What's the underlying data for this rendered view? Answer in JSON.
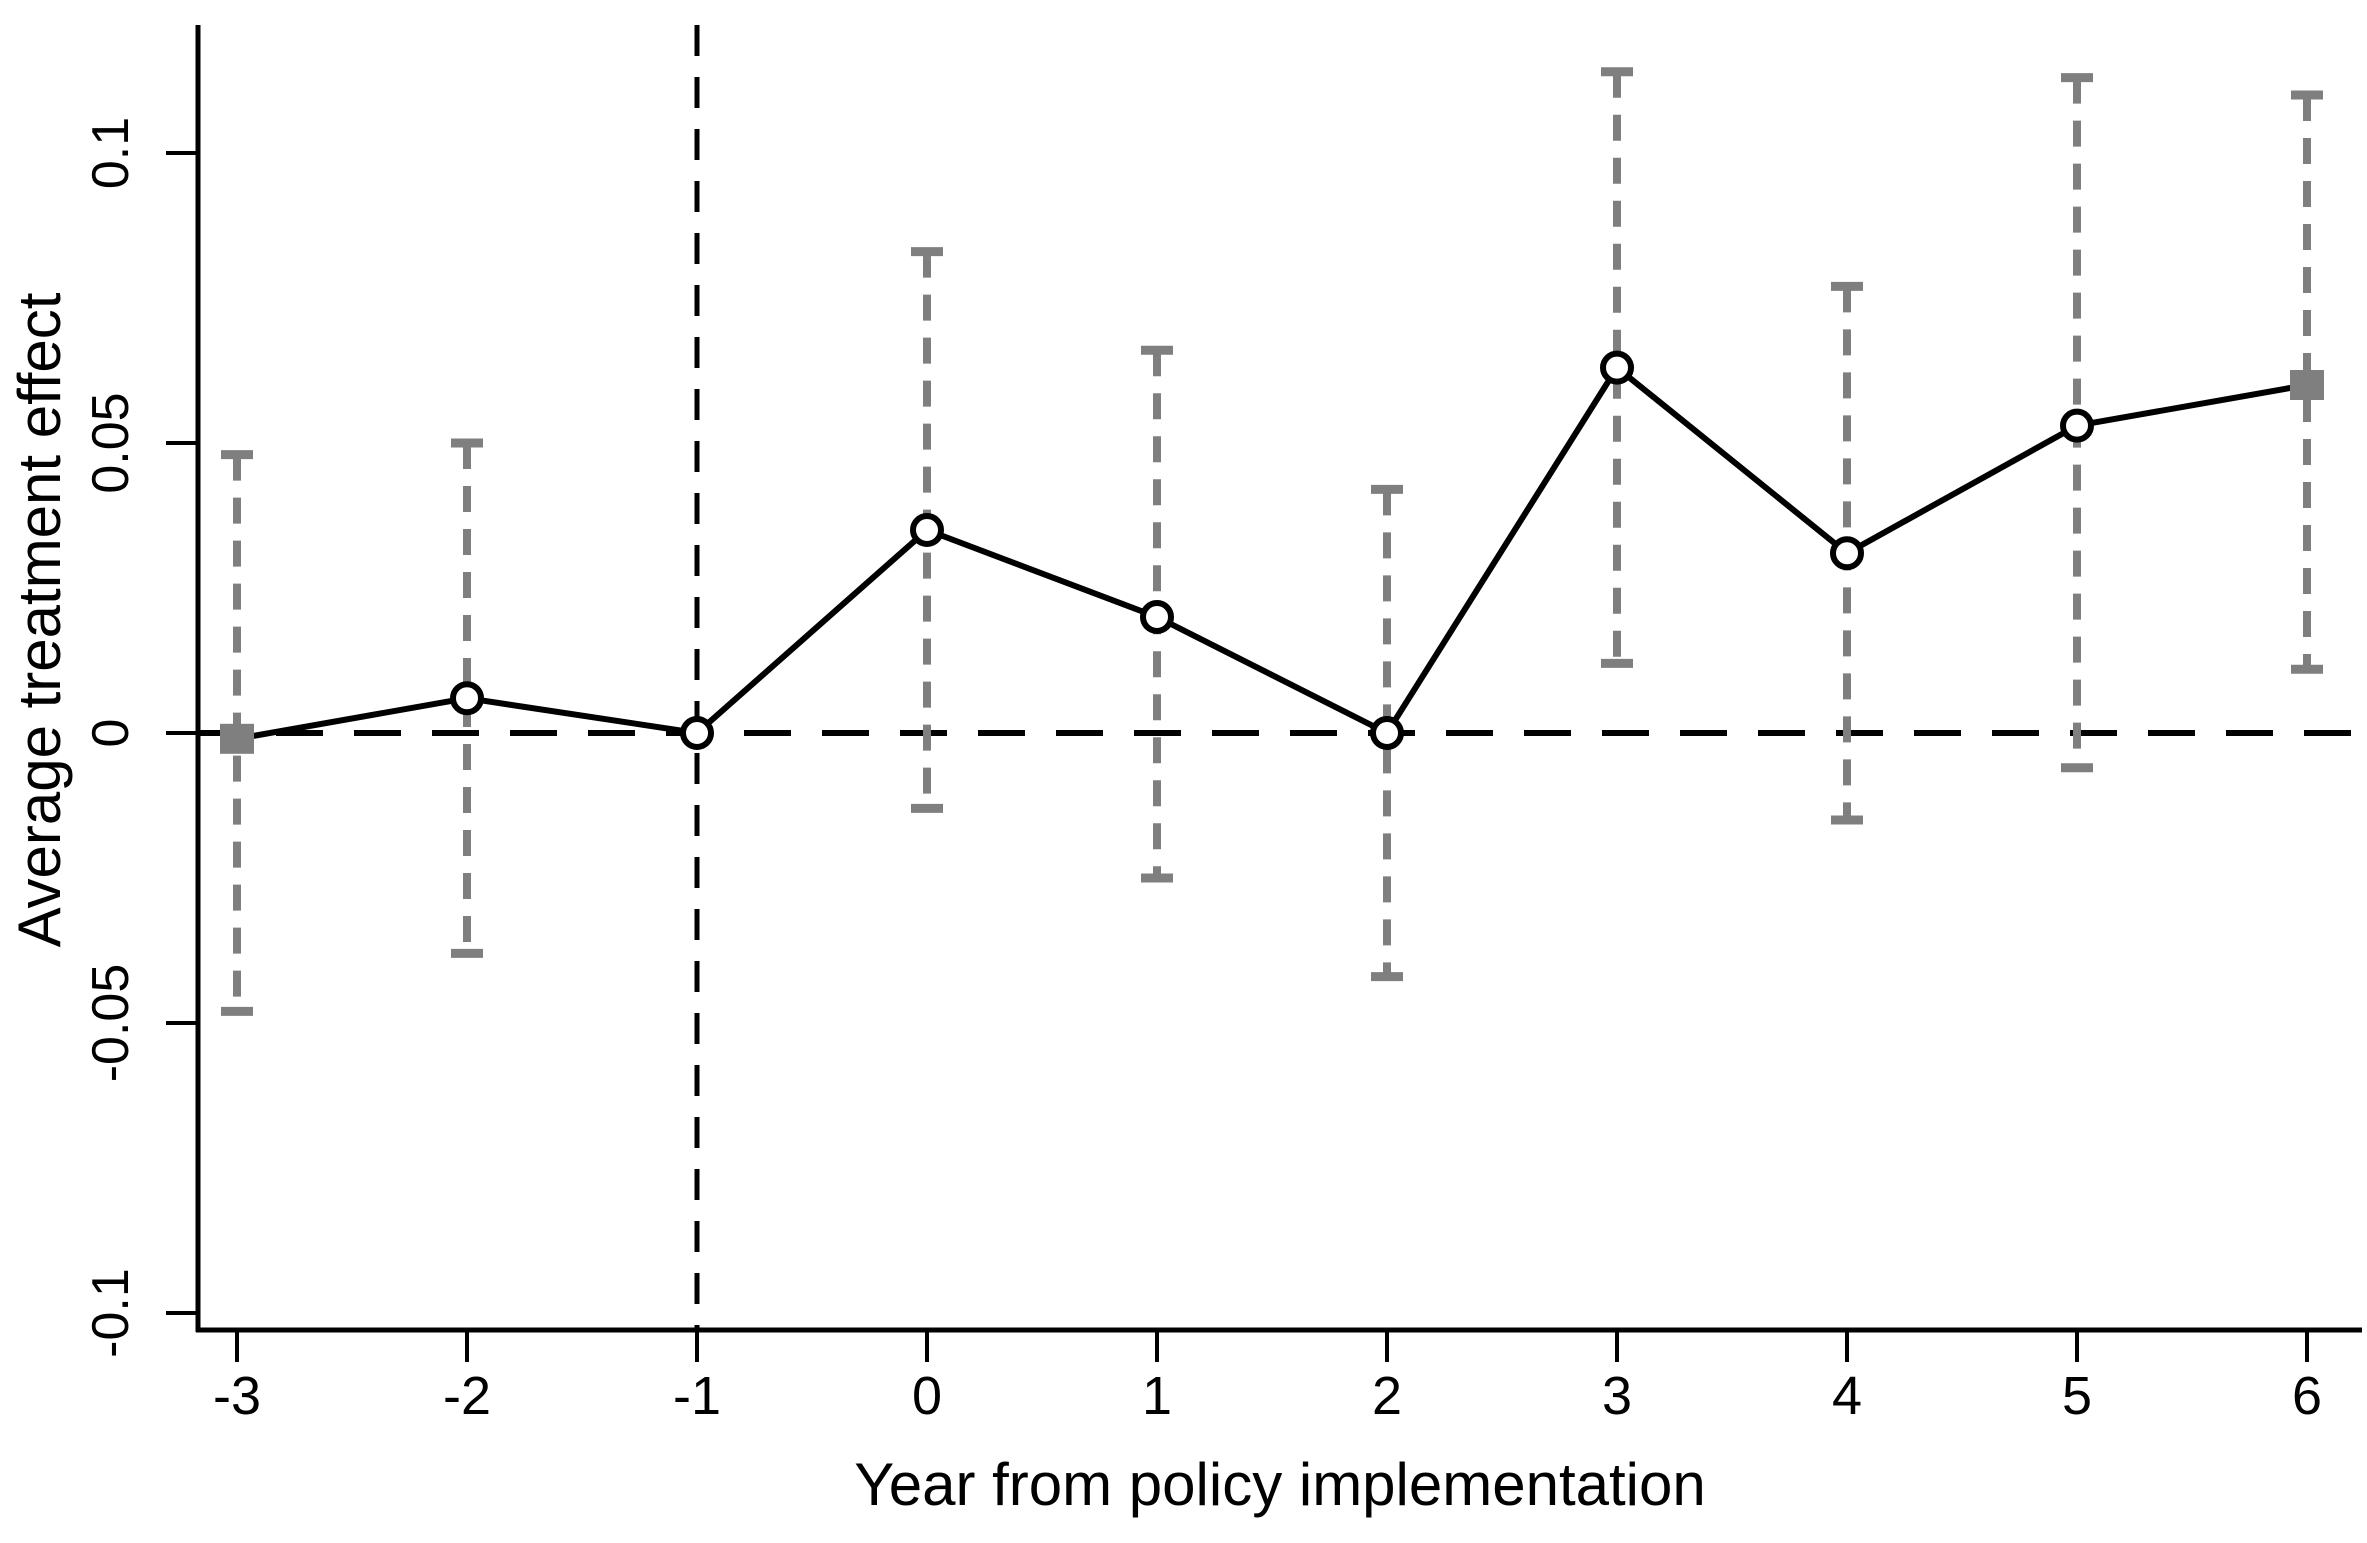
{
  "chart_data": {
    "type": "line",
    "title": "",
    "xlabel": "Year from policy implementation",
    "ylabel": "Average treatment effect",
    "x": [
      -3,
      -2,
      -1,
      0,
      1,
      2,
      3,
      4,
      5,
      6
    ],
    "series": [
      {
        "name": "Average treatment effect",
        "values": [
          -0.001,
          0.006,
          0.0,
          0.035,
          0.02,
          0.0,
          0.063,
          0.031,
          0.053,
          0.06
        ]
      }
    ],
    "ci_high": [
      0.048,
      0.05,
      null,
      0.083,
      0.066,
      0.042,
      0.114,
      0.077,
      0.113,
      0.11
    ],
    "ci_low": [
      -0.048,
      -0.038,
      null,
      -0.013,
      -0.025,
      -0.042,
      0.012,
      -0.015,
      -0.006,
      0.011
    ],
    "marker_types": [
      "square",
      "circle",
      "circle",
      "circle",
      "circle",
      "circle",
      "circle",
      "circle",
      "circle",
      "square"
    ],
    "reference_x": -1,
    "zero_line_y": 0,
    "x_tick_labels": [
      "-3",
      "-2",
      "-1",
      "0",
      "1",
      "2",
      "3",
      "4",
      "5",
      "6"
    ],
    "y_ticks": [
      {
        "value": 0.1,
        "label": "0.1"
      },
      {
        "value": 0.05,
        "label": "0.05"
      },
      {
        "value": 0,
        "label": "0"
      },
      {
        "value": -0.05,
        "label": "-0.05"
      },
      {
        "value": -0.1,
        "label": "-0.1"
      }
    ],
    "ylim": [
      -0.103,
      0.122
    ],
    "xlim": [
      -3.2,
      6.25
    ],
    "legend": "none",
    "grid": "off",
    "colors": {
      "line": "#000000",
      "marker_stroke": "#000000",
      "marker_fill": "#ffffff",
      "ci": "#7f7f7f",
      "endpoint_marker": "#7f7f7f",
      "reference_lines": "#000000",
      "axis": "#000000",
      "background": "#ffffff"
    }
  }
}
